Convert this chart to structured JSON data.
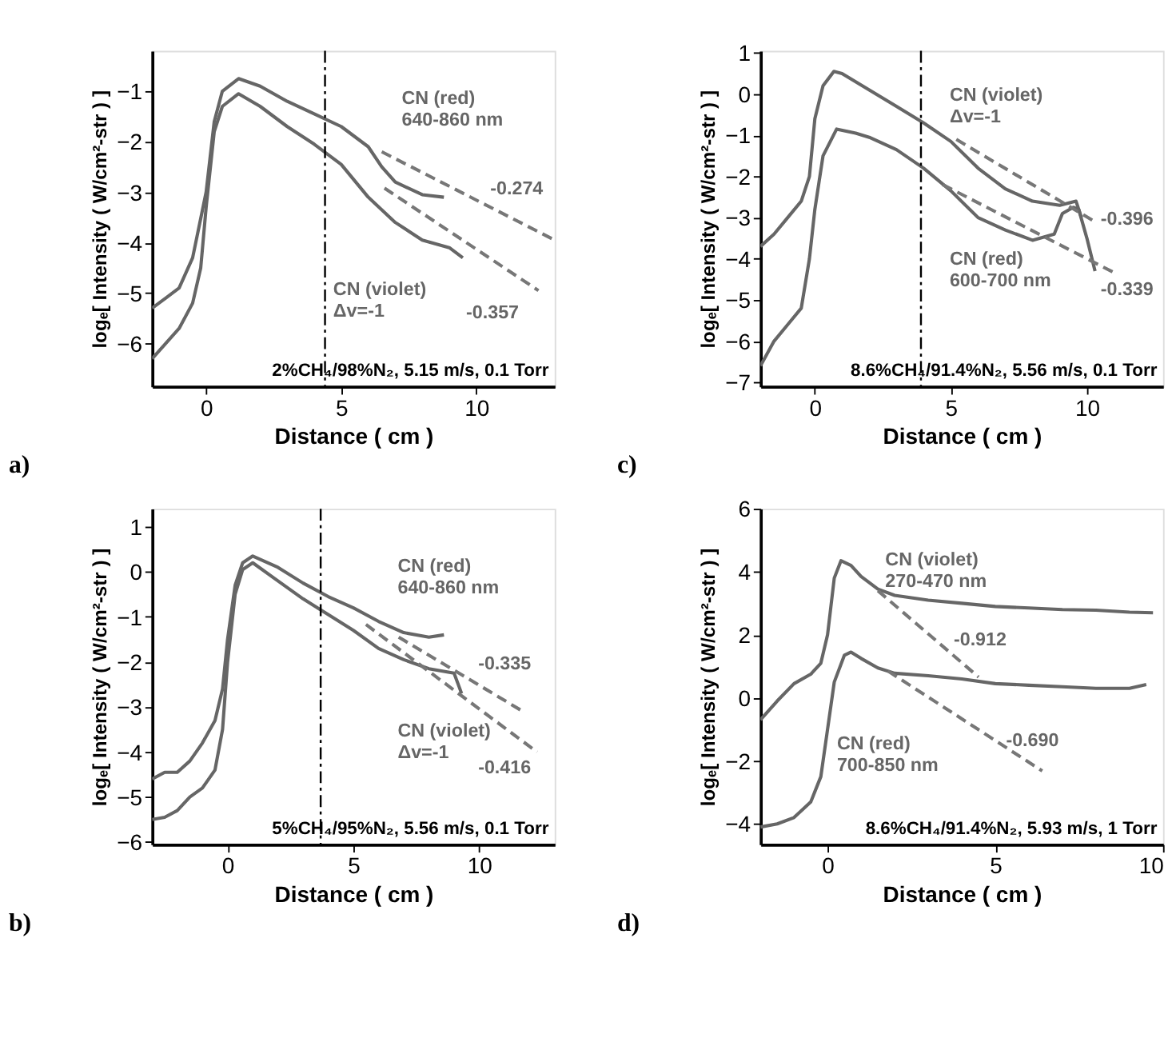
{
  "chart_data": [
    {
      "type": "line",
      "title": "a)",
      "xlabel": "Distance ( cm )",
      "ylabel": "logₑ[ Intensity ( W/cm²-str ) ]",
      "xlim": [
        -2,
        12.9
      ],
      "ylim": [
        -6.85,
        -0.2
      ],
      "xticks": [
        0,
        5,
        10
      ],
      "yticks": [
        -6,
        -5,
        -4,
        -3,
        -2,
        -1
      ],
      "grid": false,
      "series": [
        {
          "color": "#666666",
          "line_style": "solid",
          "x": [
            -2,
            -1.5,
            -1,
            -0.5,
            0,
            0.3,
            0.6,
            1.2,
            2,
            3,
            4,
            5,
            6,
            6.5,
            7,
            8,
            8.8
          ],
          "values": [
            -5.3,
            -5.1,
            -4.9,
            -4.3,
            -3.0,
            -1.6,
            -1.0,
            -0.75,
            -0.9,
            -1.2,
            -1.45,
            -1.7,
            -2.1,
            -2.5,
            -2.8,
            -3.05,
            -3.1
          ]
        },
        {
          "color": "#666666",
          "line_style": "solid",
          "x": [
            -2,
            -1.5,
            -1,
            -0.5,
            -0.2,
            0,
            0.3,
            0.6,
            1.2,
            2,
            3,
            4,
            5,
            6,
            7,
            8,
            9,
            9.5
          ],
          "values": [
            -6.3,
            -6.0,
            -5.7,
            -5.2,
            -4.5,
            -3.3,
            -1.8,
            -1.3,
            -1.05,
            -1.3,
            -1.7,
            -2.05,
            -2.45,
            -3.1,
            -3.6,
            -3.95,
            -4.1,
            -4.3
          ]
        },
        {
          "color": "#777777",
          "line_style": "dashed",
          "x": [
            6.5,
            12.9
          ],
          "values": [
            -2.2,
            -3.95
          ]
        },
        {
          "color": "#777777",
          "line_style": "dashed",
          "x": [
            6.6,
            12.3
          ],
          "values": [
            -2.92,
            -4.95
          ]
        }
      ],
      "ref_lines": [
        {
          "axis": "x",
          "value": 4.4,
          "color": "#000000",
          "line_style": "dashdot"
        }
      ],
      "annotations": [
        "2%CH₄/98%N₂, 5.15 m/s, 0.1 Torr",
        "CN (red)\n640-860 nm",
        "-0.274",
        "CN (violet)\nΔv=-1",
        "-0.357"
      ]
    },
    {
      "type": "line",
      "title": "c)",
      "xlabel": "Distance ( cm )",
      "ylabel": "logₑ[ Intensity ( W/cm²-str ) ]",
      "xlim": [
        -2,
        12.8
      ],
      "ylim": [
        -7.1,
        1.05
      ],
      "xticks": [
        0,
        5,
        10
      ],
      "yticks": [
        -7,
        -6,
        -5,
        -4,
        -3,
        -2,
        -1,
        0,
        1
      ],
      "grid": false,
      "series": [
        {
          "color": "#666666",
          "line_style": "solid",
          "x": [
            -2,
            -1.5,
            -1,
            -0.5,
            -0.2,
            0,
            0.3,
            0.7,
            1,
            2,
            3,
            4,
            5,
            6,
            7,
            8,
            9,
            9.6,
            9.8
          ],
          "values": [
            -3.7,
            -3.4,
            -3.0,
            -2.6,
            -2.0,
            -0.6,
            0.2,
            0.55,
            0.5,
            0.1,
            -0.3,
            -0.7,
            -1.15,
            -1.8,
            -2.3,
            -2.6,
            -2.7,
            -2.6,
            -3.0
          ]
        },
        {
          "color": "#666666",
          "line_style": "solid",
          "x": [
            -2,
            -1.5,
            -1,
            -0.5,
            -0.2,
            0,
            0.3,
            0.8,
            1.5,
            2,
            3,
            4,
            5,
            6,
            7,
            8,
            8.8,
            9.1,
            9.5,
            9.7,
            10,
            10.3
          ],
          "values": [
            -6.6,
            -6.0,
            -5.6,
            -5.2,
            -4.0,
            -2.8,
            -1.5,
            -0.85,
            -0.95,
            -1.05,
            -1.35,
            -1.8,
            -2.35,
            -3.0,
            -3.3,
            -3.55,
            -3.4,
            -2.9,
            -2.75,
            -2.8,
            -3.5,
            -4.3
          ]
        },
        {
          "color": "#777777",
          "line_style": "dashed",
          "x": [
            5.2,
            10.3
          ],
          "values": [
            -1.1,
            -3.1
          ]
        },
        {
          "color": "#777777",
          "line_style": "dashed",
          "x": [
            4.7,
            11.1
          ],
          "values": [
            -2.2,
            -4.37
          ]
        }
      ],
      "ref_lines": [
        {
          "axis": "x",
          "value": 3.9,
          "color": "#000000",
          "line_style": "dashdot"
        }
      ],
      "annotations": [
        "8.6%CH₄/91.4%N₂, 5.56 m/s, 0.1 Torr",
        "CN (violet)\nΔv=-1",
        "-0.396",
        "CN (red)\n600-700 nm",
        "-0.339"
      ]
    },
    {
      "type": "line",
      "title": "b)",
      "xlabel": "Distance ( cm )",
      "ylabel": "logₑ[ Intensity ( W/cm²-str ) ]",
      "xlim": [
        -3,
        13
      ],
      "ylim": [
        -6.05,
        1.4
      ],
      "xticks": [
        0,
        5,
        10
      ],
      "yticks": [
        -6,
        -5,
        -4,
        -3,
        -2,
        -1,
        0,
        1
      ],
      "grid": false,
      "series": [
        {
          "color": "#666666",
          "line_style": "solid",
          "x": [
            -3,
            -2.5,
            -2,
            -1.5,
            -1,
            -0.5,
            -0.2,
            0,
            0.3,
            0.6,
            1,
            2,
            3,
            4,
            5,
            6,
            7,
            8,
            8.6
          ],
          "values": [
            -4.6,
            -4.45,
            -4.45,
            -4.2,
            -3.8,
            -3.3,
            -2.6,
            -1.5,
            -0.3,
            0.2,
            0.35,
            0.1,
            -0.25,
            -0.55,
            -0.8,
            -1.1,
            -1.35,
            -1.45,
            -1.4
          ]
        },
        {
          "color": "#666666",
          "line_style": "solid",
          "x": [
            -3,
            -2.5,
            -2,
            -1.5,
            -1,
            -0.5,
            -0.2,
            0,
            0.3,
            0.6,
            1,
            2,
            3,
            4,
            5,
            6,
            7,
            8,
            9,
            9.3
          ],
          "values": [
            -5.5,
            -5.45,
            -5.3,
            -5.0,
            -4.8,
            -4.4,
            -3.5,
            -2.0,
            -0.5,
            0.05,
            0.2,
            -0.2,
            -0.6,
            -0.95,
            -1.3,
            -1.7,
            -1.95,
            -2.15,
            -2.25,
            -2.7
          ]
        },
        {
          "color": "#777777",
          "line_style": "dashed",
          "x": [
            6.8,
            11.8
          ],
          "values": [
            -1.45,
            -3.12
          ]
        },
        {
          "color": "#777777",
          "line_style": "dashed",
          "x": [
            5.5,
            12.3
          ],
          "values": [
            -1.17,
            -4.0
          ]
        }
      ],
      "ref_lines": [
        {
          "axis": "x",
          "value": 3.7,
          "color": "#000000",
          "line_style": "dashdot"
        }
      ],
      "annotations": [
        "5%CH₄/95%N₂, 5.56 m/s, 0.1 Torr",
        "CN (red)\n640-860 nm",
        "-0.335",
        "CN (violet)\nΔv=-1",
        "-0.416"
      ]
    },
    {
      "type": "line",
      "title": "d)",
      "xlabel": "Distance ( cm )",
      "ylabel": "logₑ[ Intensity ( W/cm²-str ) ]",
      "xlim": [
        -2,
        10
      ],
      "ylim": [
        -4.65,
        6
      ],
      "xticks": [
        0,
        5,
        10
      ],
      "yticks": [
        -4,
        -2,
        0,
        2,
        4,
        6
      ],
      "grid": false,
      "series": [
        {
          "color": "#666666",
          "line_style": "solid",
          "x": [
            -2,
            -1.5,
            -1,
            -0.5,
            -0.2,
            0,
            0.2,
            0.4,
            0.7,
            1,
            1.5,
            2,
            3,
            4,
            5,
            6,
            7,
            8,
            9,
            9.7
          ],
          "values": [
            -0.7,
            -0.1,
            0.45,
            0.75,
            1.1,
            2.0,
            3.8,
            4.35,
            4.2,
            3.85,
            3.45,
            3.25,
            3.1,
            3.0,
            2.9,
            2.85,
            2.8,
            2.78,
            2.72,
            2.7
          ]
        },
        {
          "color": "#666666",
          "line_style": "solid",
          "x": [
            -2,
            -1.5,
            -1,
            -0.5,
            -0.2,
            0,
            0.2,
            0.5,
            0.7,
            1,
            1.5,
            2,
            3,
            4,
            5,
            6,
            7,
            8,
            9,
            9.5
          ],
          "values": [
            -4.1,
            -4.0,
            -3.8,
            -3.3,
            -2.5,
            -1.0,
            0.5,
            1.35,
            1.45,
            1.25,
            0.95,
            0.78,
            0.7,
            0.6,
            0.45,
            0.4,
            0.35,
            0.3,
            0.3,
            0.42
          ]
        },
        {
          "color": "#777777",
          "line_style": "dashed",
          "x": [
            1.5,
            4.5
          ],
          "values": [
            3.4,
            0.66
          ]
        },
        {
          "color": "#777777",
          "line_style": "dashed",
          "x": [
            1.8,
            6.4
          ],
          "values": [
            0.85,
            -2.32
          ]
        }
      ],
      "annotations": [
        "8.6%CH₄/91.4%N₂, 5.93 m/s, 1 Torr",
        "CN (violet)\n270-470 nm",
        "-0.912",
        "CN (red)\n700-850 nm",
        "-0.690"
      ]
    }
  ]
}
